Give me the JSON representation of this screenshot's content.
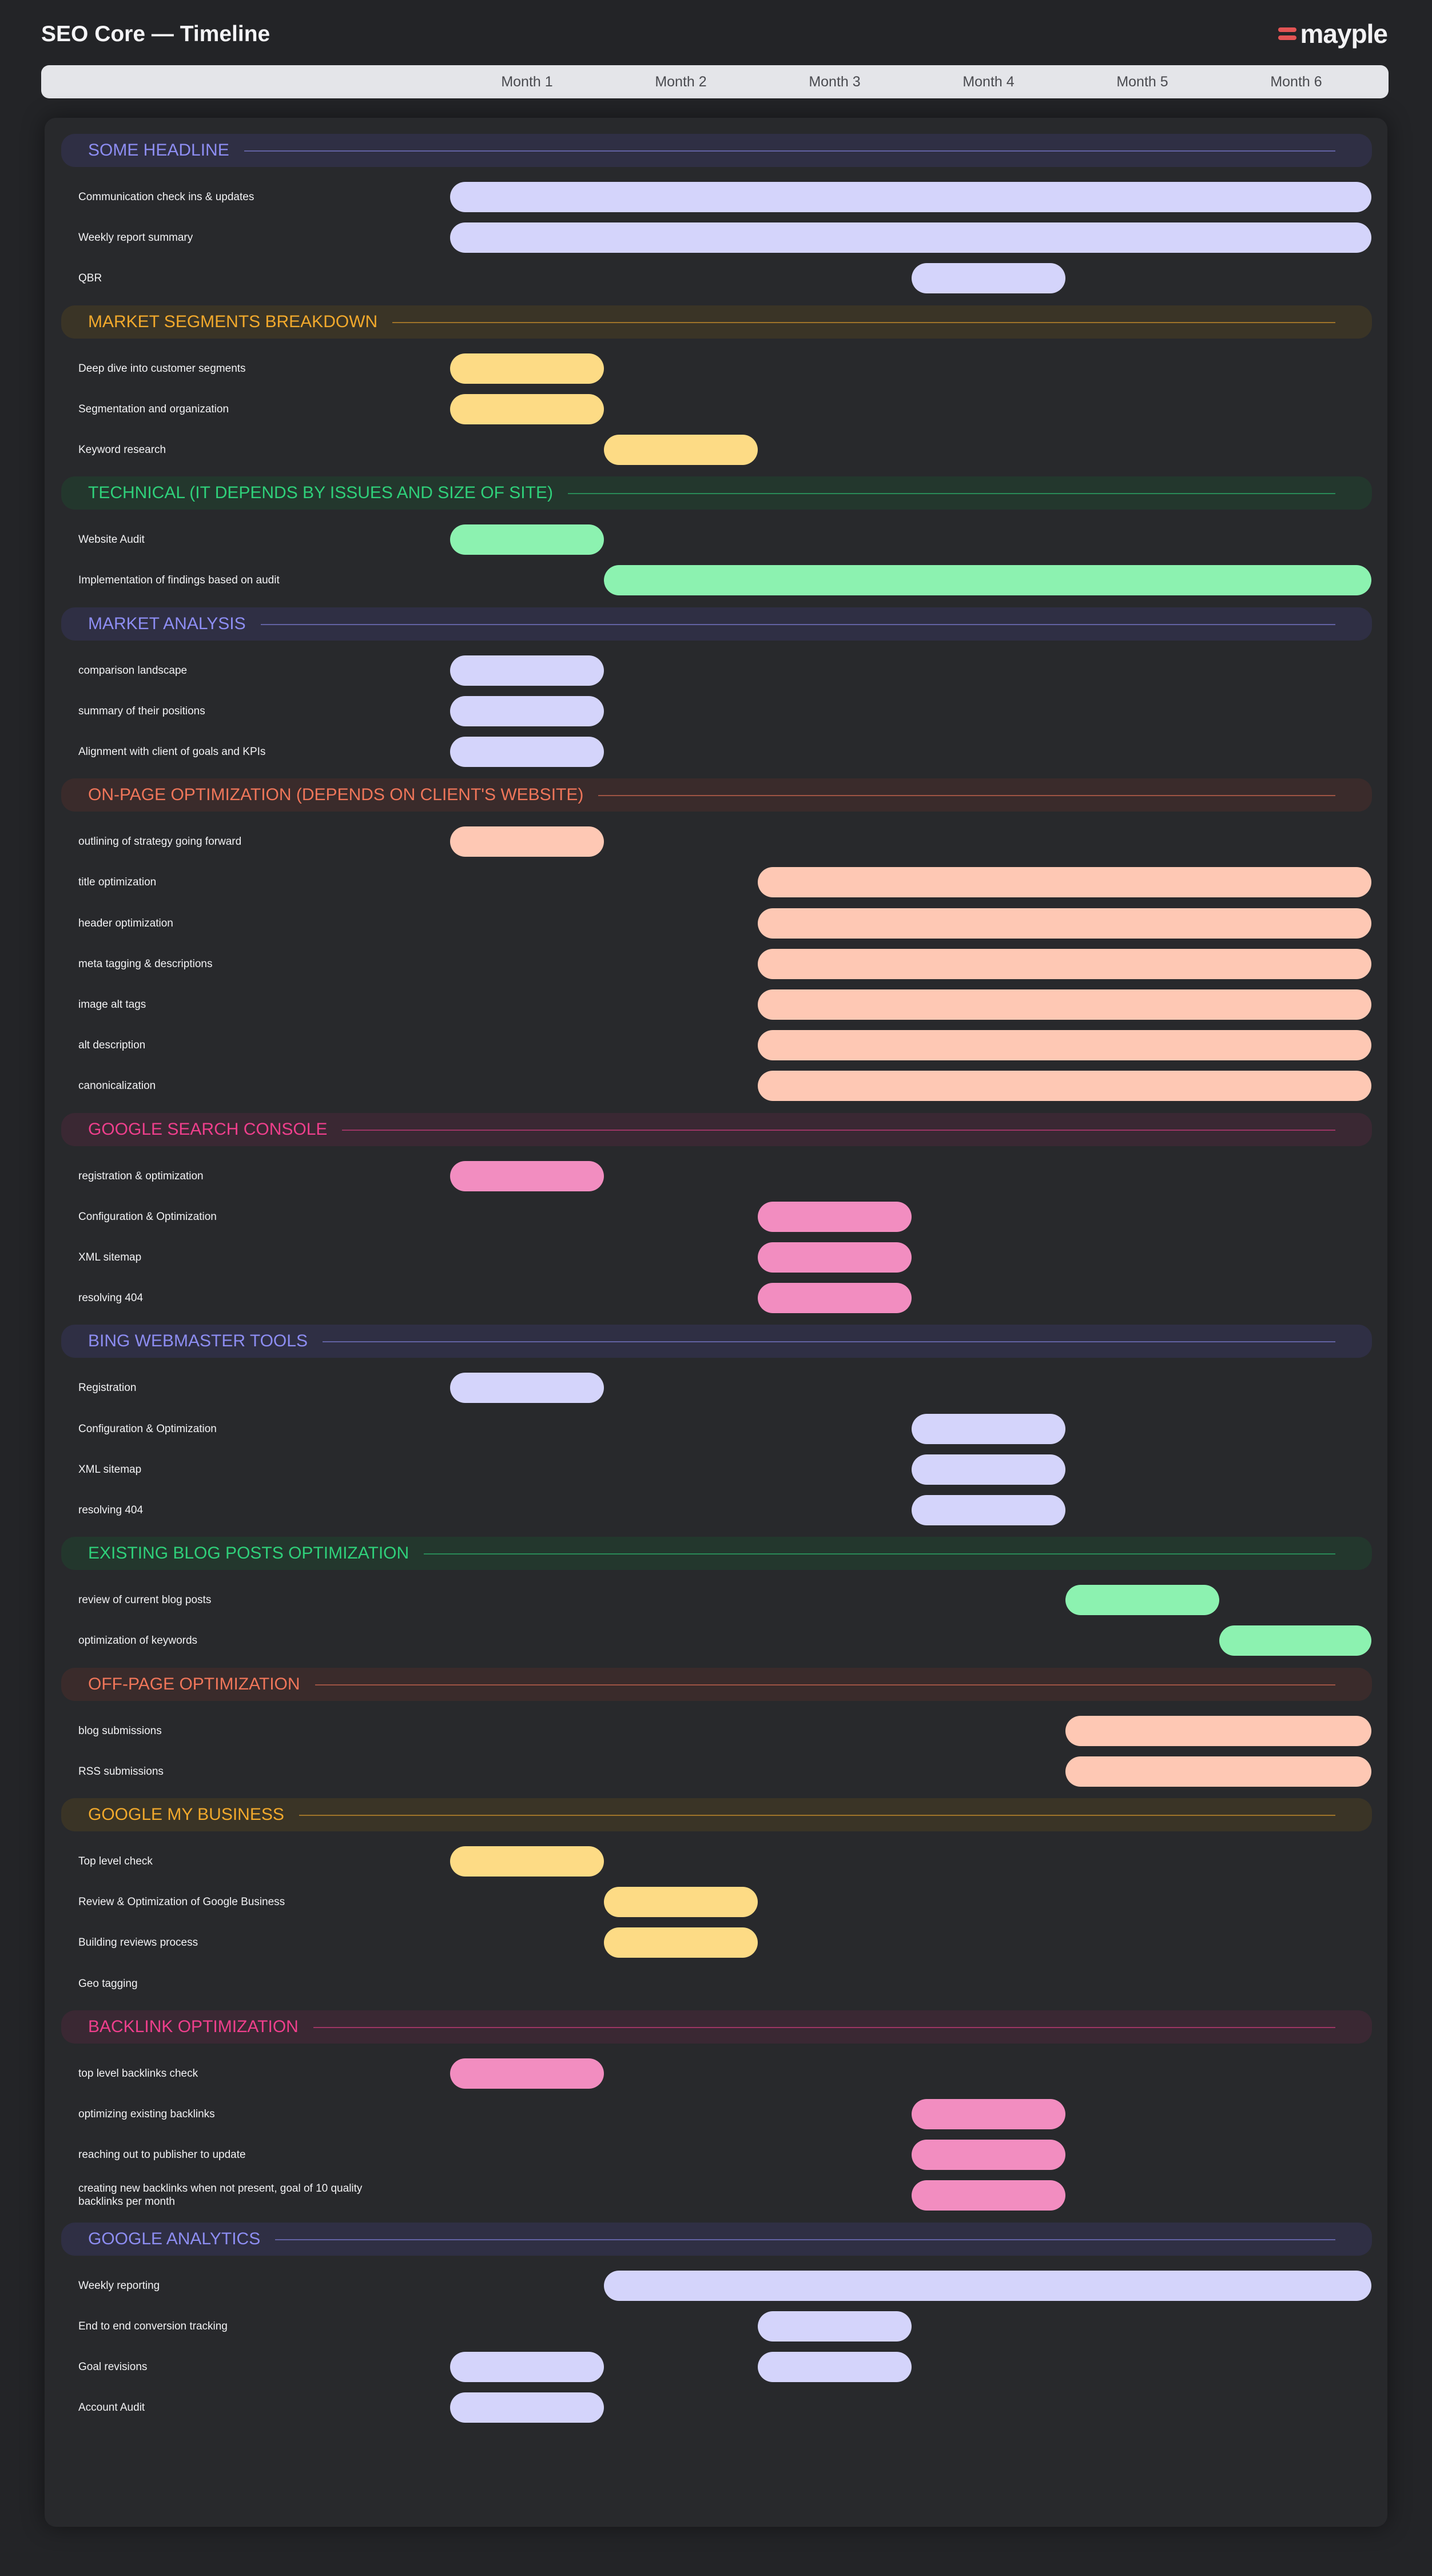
{
  "app": {
    "title": "SEO Core — Timeline",
    "brand": "mayple"
  },
  "months": [
    "Month 1",
    "Month 2",
    "Month 3",
    "Month 4",
    "Month 5",
    "Month 6"
  ],
  "colors": {
    "purple": {
      "title": "#8d8df2",
      "bg": "#2f2f44",
      "bar": "#d4d4fb"
    },
    "yellow": {
      "title": "#f2a92c",
      "bg": "#3a3426",
      "bar": "#fddb85"
    },
    "green": {
      "title": "#2fd07a",
      "bg": "#23372d",
      "bar": "#8cf2b0"
    },
    "salmon": {
      "title": "#f0765a",
      "bg": "#3a2b2b",
      "bar": "#fec8b4"
    },
    "pink": {
      "title": "#ef3f8c",
      "bg": "#3a2833",
      "bar": "#f28dc0"
    }
  },
  "sections": [
    {
      "title": "SOME HEADLINE",
      "color": "purple",
      "tasks": [
        {
          "label": "Communication check ins & updates",
          "start": 1,
          "end": 6
        },
        {
          "label": "Weekly report summary",
          "start": 1,
          "end": 6
        },
        {
          "label": "QBR",
          "start": 4,
          "end": 4
        }
      ]
    },
    {
      "title": "MARKET SEGMENTS BREAKDOWN",
      "color": "yellow",
      "tasks": [
        {
          "label": "Deep dive into customer segments",
          "start": 1,
          "end": 1
        },
        {
          "label": "Segmentation and organization",
          "start": 1,
          "end": 1
        },
        {
          "label": "Keyword research",
          "start": 2,
          "end": 2
        }
      ]
    },
    {
      "title": "TECHNICAL (IT DEPENDS BY ISSUES AND SIZE OF SITE)",
      "color": "green",
      "tasks": [
        {
          "label": "Website Audit",
          "start": 1,
          "end": 1
        },
        {
          "label": "Implementation of findings based on audit",
          "start": 2,
          "end": 6
        }
      ]
    },
    {
      "title": "MARKET ANALYSIS",
      "color": "purple",
      "tasks": [
        {
          "label": "comparison landscape",
          "start": 1,
          "end": 1
        },
        {
          "label": "summary of their positions",
          "start": 1,
          "end": 1
        },
        {
          "label": "Alignment with client of goals and KPIs",
          "start": 1,
          "end": 1
        }
      ]
    },
    {
      "title": "ON-PAGE OPTIMIZATION (DEPENDS ON CLIENT'S WEBSITE)",
      "color": "salmon",
      "tasks": [
        {
          "label": "outlining of strategy going forward",
          "start": 1,
          "end": 1
        },
        {
          "label": "title optimization",
          "start": 3,
          "end": 6
        },
        {
          "label": "header optimization",
          "start": 3,
          "end": 6
        },
        {
          "label": "meta tagging & descriptions",
          "start": 3,
          "end": 6
        },
        {
          "label": "image alt tags",
          "start": 3,
          "end": 6
        },
        {
          "label": "alt description",
          "start": 3,
          "end": 6
        },
        {
          "label": "canonicalization",
          "start": 3,
          "end": 6
        }
      ]
    },
    {
      "title": "GOOGLE SEARCH CONSOLE",
      "color": "pink",
      "tasks": [
        {
          "label": "registration & optimization",
          "start": 1,
          "end": 1
        },
        {
          "label": "Configuration & Optimization",
          "start": 3,
          "end": 3
        },
        {
          "label": "XML sitemap",
          "start": 3,
          "end": 3
        },
        {
          "label": "resolving 404",
          "start": 3,
          "end": 3
        }
      ]
    },
    {
      "title": "BING WEBMASTER TOOLS",
      "color": "purple",
      "tasks": [
        {
          "label": "Registration",
          "start": 1,
          "end": 1
        },
        {
          "label": "Configuration & Optimization",
          "start": 4,
          "end": 4
        },
        {
          "label": "XML sitemap",
          "start": 4,
          "end": 4
        },
        {
          "label": "resolving 404",
          "start": 4,
          "end": 4
        }
      ]
    },
    {
      "title": "EXISTING BLOG POSTS OPTIMIZATION",
      "color": "green",
      "tasks": [
        {
          "label": "review of current blog posts",
          "start": 5,
          "end": 5
        },
        {
          "label": "optimization of keywords",
          "start": 6,
          "end": 6
        }
      ]
    },
    {
      "title": "OFF-PAGE OPTIMIZATION",
      "color": "salmon",
      "tasks": [
        {
          "label": "blog submissions",
          "start": 5,
          "end": 6
        },
        {
          "label": "RSS submissions",
          "start": 5,
          "end": 6
        }
      ]
    },
    {
      "title": "GOOGLE MY BUSINESS",
      "color": "yellow",
      "tasks": [
        {
          "label": "Top level check",
          "start": 1,
          "end": 1
        },
        {
          "label": "Review & Optimization of Google Business",
          "start": 2,
          "end": 2
        },
        {
          "label": "Building reviews process",
          "start": 2,
          "end": 2
        },
        {
          "label": "Geo tagging",
          "start": null,
          "end": null
        }
      ]
    },
    {
      "title": "BACKLINK OPTIMIZATION",
      "color": "pink",
      "tasks": [
        {
          "label": "top level backlinks check",
          "start": 1,
          "end": 1
        },
        {
          "label": "optimizing existing backlinks",
          "start": 4,
          "end": 4
        },
        {
          "label": "reaching out to publisher to update",
          "start": 4,
          "end": 4
        },
        {
          "label": "creating new backlinks when not present, goal of 10 quality backlinks per month",
          "start": 4,
          "end": 4
        }
      ]
    },
    {
      "title": "GOOGLE ANALYTICS",
      "color": "purple",
      "tasks": [
        {
          "label": "Weekly reporting",
          "start": 2,
          "end": 6
        },
        {
          "label": "End to end conversion tracking",
          "start": 3,
          "end": 3
        },
        {
          "label": "Goal revisions",
          "start": 1,
          "end": 1,
          "extra": {
            "start": 3,
            "end": 3
          }
        },
        {
          "label": "Account Audit",
          "start": 1,
          "end": 1
        }
      ]
    }
  ]
}
